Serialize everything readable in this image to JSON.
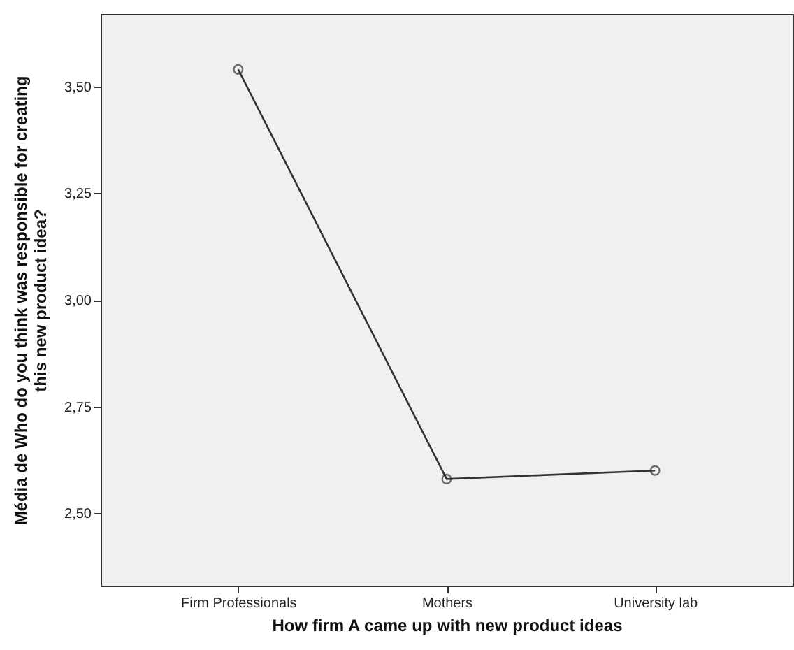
{
  "chart_data": {
    "type": "line",
    "xlabel": "How firm A came up with new product ideas",
    "ylabel": "Média de Who do you think was responsible for creating this new product idea?",
    "categories": [
      "Firm Professionals",
      "Mothers",
      "University lab"
    ],
    "series": [
      {
        "color": "#333333",
        "values": [
          3.54,
          2.58,
          2.6
        ]
      }
    ],
    "ylim": [
      2.33,
      3.67
    ],
    "yticks": [
      {
        "value": 2.5,
        "label": "2,50"
      },
      {
        "value": 2.75,
        "label": "2,75"
      },
      {
        "value": 3.0,
        "label": "3,00"
      },
      {
        "value": 3.25,
        "label": "3,25"
      },
      {
        "value": 3.5,
        "label": "3,50"
      }
    ],
    "marker": "circle",
    "line_style": "solid",
    "grid": false
  }
}
